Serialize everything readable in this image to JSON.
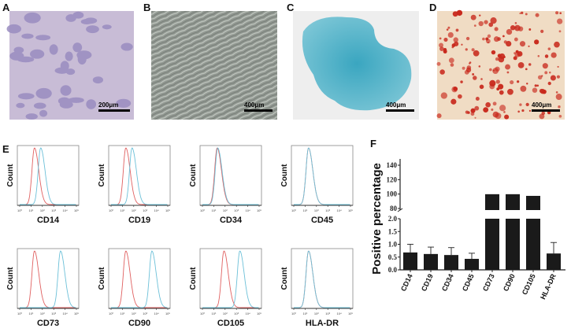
{
  "panels": {
    "A": {
      "label": "A",
      "scale_bar": "200μm"
    },
    "B": {
      "label": "B",
      "scale_bar": "400μm"
    },
    "C": {
      "label": "C",
      "scale_bar": "400μm"
    },
    "D": {
      "label": "D",
      "scale_bar": "400μm"
    },
    "E": {
      "label": "E"
    },
    "F": {
      "label": "F"
    }
  },
  "colors": {
    "isotype": "#e06060",
    "marker": "#6cc0d8",
    "bar": "#1a1a1a"
  },
  "chart_data": [
    {
      "type": "line",
      "panel": "E",
      "ylabel": "Count",
      "x_scale": "log",
      "xlim": [
        1,
        100000
      ],
      "x_ticks": [
        "10⁰",
        "10¹",
        "10²",
        "10³",
        "10⁴",
        "10⁵"
      ],
      "histograms": [
        {
          "marker": "CD14",
          "isotype_peak_log10": 1.3,
          "marker_peak_log10": 1.85
        },
        {
          "marker": "CD19",
          "isotype_peak_log10": 1.3,
          "marker_peak_log10": 1.85
        },
        {
          "marker": "CD34",
          "isotype_peak_log10": 1.3,
          "marker_peak_log10": 1.35
        },
        {
          "marker": "CD45",
          "isotype_peak_log10": 1.3,
          "marker_peak_log10": 1.3
        },
        {
          "marker": "CD73",
          "isotype_peak_log10": 1.3,
          "marker_peak_log10": 3.6
        },
        {
          "marker": "CD90",
          "isotype_peak_log10": 1.3,
          "marker_peak_log10": 3.6
        },
        {
          "marker": "CD105",
          "isotype_peak_log10": 1.9,
          "marker_peak_log10": 3.3
        },
        {
          "marker": "HLA-DR",
          "isotype_peak_log10": 1.3,
          "marker_peak_log10": 1.3
        }
      ]
    },
    {
      "type": "bar",
      "panel": "F",
      "ylabel": "Positive percentage",
      "categories": [
        "CD14",
        "CD19",
        "CD34",
        "CD45",
        "CD73",
        "CD90",
        "CD105",
        "HLA-DR"
      ],
      "values": [
        0.68,
        0.62,
        0.58,
        0.43,
        99.8,
        99.8,
        97.5,
        0.64
      ],
      "errors": [
        0.32,
        0.27,
        0.29,
        0.22,
        0,
        0,
        0,
        0.43
      ],
      "broken_axis": true,
      "ylim_lower": [
        0,
        2.0
      ],
      "ylim_upper": [
        80,
        140
      ],
      "yticks_lower": [
        "0.0",
        "0.5",
        "1.0",
        "1.5",
        "2.0"
      ],
      "yticks_upper": [
        "80",
        "100",
        "120",
        "140"
      ],
      "grid": false
    }
  ]
}
